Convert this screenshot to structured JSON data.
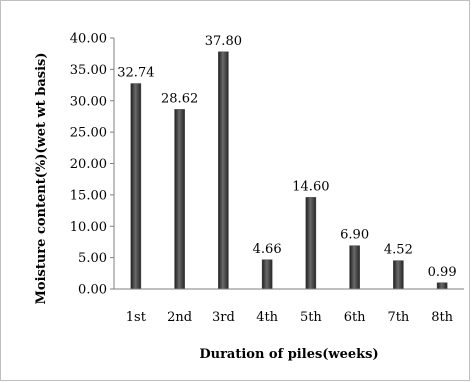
{
  "chart_data": {
    "type": "bar",
    "categories": [
      "1st",
      "2nd",
      "3rd",
      "4th",
      "5th",
      "6th",
      "7th",
      "8th"
    ],
    "values": [
      32.74,
      28.62,
      37.8,
      4.66,
      14.6,
      6.9,
      4.52,
      0.99
    ],
    "data_labels": [
      "32.74",
      "28.62",
      "37.80",
      "4.66",
      "14.60",
      "6.90",
      "4.52",
      "0.99"
    ],
    "y_ticks": [
      "0.00",
      "5.00",
      "10.00",
      "15.00",
      "20.00",
      "25.00",
      "30.00",
      "35.00",
      "40.00"
    ],
    "ylim": [
      0,
      40
    ],
    "xlabel": "Duration of piles(weeks)",
    "ylabel": "Moisture content(%)(wet wt basis)",
    "grid": false,
    "legend": "none",
    "bar_color": "#3f3f3f"
  }
}
